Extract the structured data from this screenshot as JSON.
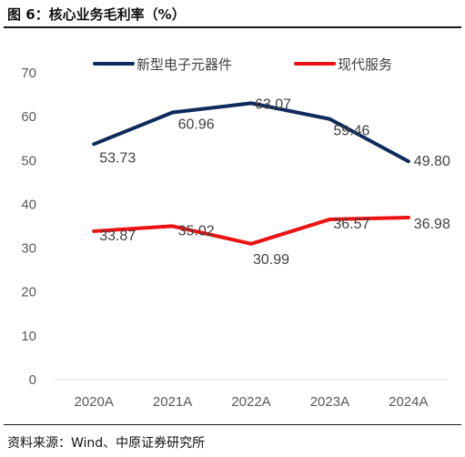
{
  "figure": {
    "title": "图 6：核心业务毛利率（%）",
    "source": "资料来源：Wind、中原证券研究所"
  },
  "chart_data": {
    "type": "line",
    "title": "",
    "xlabel": "",
    "ylabel": "",
    "categories": [
      "2020A",
      "2021A",
      "2022A",
      "2023A",
      "2024A"
    ],
    "ylim": [
      0,
      70
    ],
    "yticks": [
      0,
      10,
      20,
      30,
      40,
      50,
      60,
      70
    ],
    "grid": false,
    "legend": "top",
    "series": [
      {
        "name": "新型电子元器件",
        "color": "#0f2a5c",
        "values": [
          53.73,
          60.96,
          63.07,
          59.46,
          49.8
        ],
        "labels": [
          "53.73",
          "60.96",
          "63.07",
          "59.46",
          "49.80"
        ]
      },
      {
        "name": "现代服务",
        "color": "#ee1111",
        "values": [
          33.87,
          35.02,
          30.99,
          36.57,
          36.98
        ],
        "labels": [
          "33.87",
          "35.02",
          "30.99",
          "36.57",
          "36.98"
        ]
      }
    ]
  }
}
